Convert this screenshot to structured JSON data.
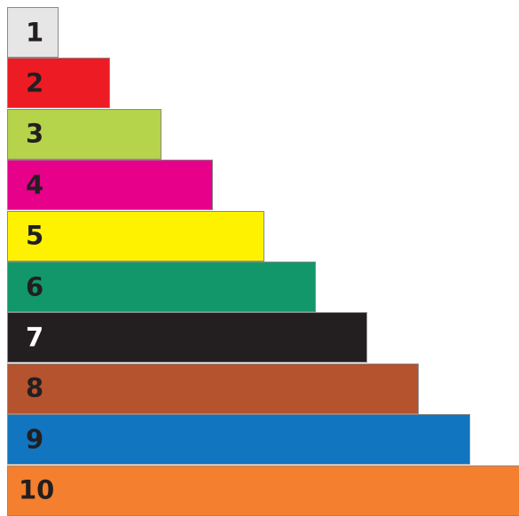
{
  "rods": [
    {
      "label": "1",
      "length": 1,
      "color": "#e6e6e6",
      "text_color": "#231f20"
    },
    {
      "label": "2",
      "length": 2,
      "color": "#ed1c24",
      "text_color": "#231f20"
    },
    {
      "label": "3",
      "length": 3,
      "color": "#b5d34b",
      "text_color": "#231f20"
    },
    {
      "label": "4",
      "length": 4,
      "color": "#e6008a",
      "text_color": "#231f20"
    },
    {
      "label": "5",
      "length": 5,
      "color": "#fff200",
      "text_color": "#231f20"
    },
    {
      "label": "6",
      "length": 6,
      "color": "#12976a",
      "text_color": "#231f20"
    },
    {
      "label": "7",
      "length": 7,
      "color": "#231f20",
      "text_color": "#ffffff"
    },
    {
      "label": "8",
      "length": 8,
      "color": "#b5532e",
      "text_color": "#231f20"
    },
    {
      "label": "9",
      "length": 9,
      "color": "#1175c0",
      "text_color": "#231f20"
    },
    {
      "label": "10",
      "length": 10,
      "color": "#f47f2e",
      "text_color": "#231f20"
    }
  ]
}
